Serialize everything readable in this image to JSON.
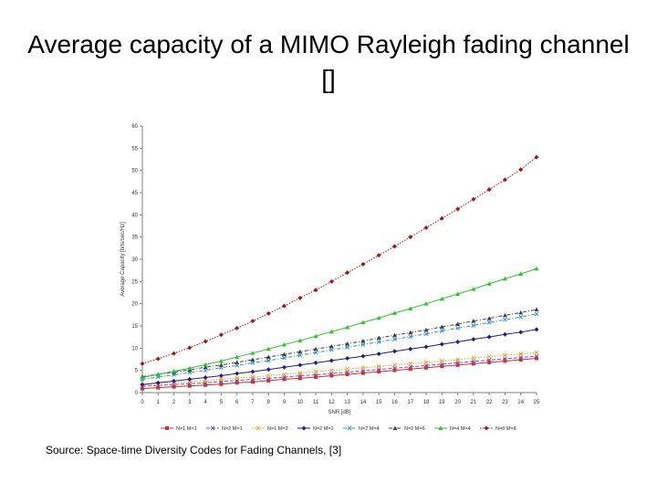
{
  "slide": {
    "title": "Average capacity of a MIMO Rayleigh fading channel []",
    "source": "Source: Space-time Diversity Codes for Fading Channels, [3]"
  },
  "chart_data": {
    "type": "line",
    "xlabel": "SNR [dB]",
    "ylabel": "Average Capacity [bits/sec/Hz]",
    "ylim": [
      0,
      60
    ],
    "yticks": [
      0,
      5,
      10,
      15,
      20,
      25,
      30,
      35,
      40,
      45,
      50,
      55,
      60
    ],
    "x": [
      "0",
      "1",
      "2",
      "3",
      "4",
      "5",
      "6",
      "7",
      "8",
      "9",
      "10",
      "11",
      "12",
      "13",
      "14",
      "15",
      "16",
      "17",
      "18",
      "19",
      "20",
      "21",
      "22",
      "23",
      "24",
      "25"
    ],
    "grid": false,
    "legend_position": "bottom",
    "series": [
      {
        "name": "N=1 M=1",
        "color": "#d03030",
        "marker": "square",
        "dash": "solid",
        "values": [
          0.9,
          1.1,
          1.3,
          1.5,
          1.7,
          1.9,
          2.2,
          2.4,
          2.7,
          3.0,
          3.2,
          3.5,
          3.8,
          4.1,
          4.4,
          4.7,
          5.0,
          5.3,
          5.6,
          5.9,
          6.2,
          6.5,
          6.8,
          7.1,
          7.4,
          7.7
        ]
      },
      {
        "name": "N=2 M=1",
        "color": "#8050b0",
        "marker": "x",
        "dash": "dash",
        "values": [
          1.4,
          1.6,
          1.8,
          2.0,
          2.2,
          2.5,
          2.7,
          3.0,
          3.2,
          3.5,
          3.8,
          4.0,
          4.3,
          4.6,
          4.9,
          5.2,
          5.5,
          5.8,
          6.1,
          6.4,
          6.7,
          7.0,
          7.3,
          7.6,
          7.9,
          8.2
        ]
      },
      {
        "name": "N=1 M=2",
        "color": "#f0a030",
        "marker": "x",
        "dash": "dot",
        "values": [
          1.7,
          2.0,
          2.2,
          2.5,
          2.7,
          3.0,
          3.3,
          3.5,
          3.8,
          4.1,
          4.4,
          4.7,
          5.0,
          5.3,
          5.6,
          5.9,
          6.2,
          6.5,
          6.8,
          7.1,
          7.4,
          7.8,
          8.1,
          8.4,
          8.7,
          9.0
        ]
      },
      {
        "name": "N=2 M=2",
        "color": "#202080",
        "marker": "diamond",
        "dash": "solid",
        "values": [
          1.8,
          2.2,
          2.6,
          3.0,
          3.4,
          3.8,
          4.3,
          4.7,
          5.2,
          5.7,
          6.2,
          6.7,
          7.2,
          7.7,
          8.2,
          8.7,
          9.3,
          9.8,
          10.3,
          10.9,
          11.4,
          12.0,
          12.5,
          13.1,
          13.6,
          14.2
        ]
      },
      {
        "name": "N=2 M=4",
        "color": "#3090d0",
        "marker": "x",
        "dash": "dashdot",
        "values": [
          3.0,
          3.5,
          4.0,
          4.5,
          5.0,
          5.6,
          6.1,
          6.7,
          7.2,
          7.8,
          8.4,
          9.0,
          9.6,
          10.2,
          10.8,
          11.4,
          12.0,
          12.6,
          13.2,
          13.9,
          14.5,
          15.1,
          15.8,
          16.4,
          17.0,
          17.7
        ]
      },
      {
        "name": "N=2 M=6",
        "color": "#404040",
        "marker": "triangle",
        "dash": "dashdot",
        "values": [
          3.6,
          4.1,
          4.6,
          5.1,
          5.7,
          6.2,
          6.8,
          7.4,
          8.0,
          8.6,
          9.2,
          9.8,
          10.4,
          11.0,
          11.6,
          12.3,
          12.9,
          13.5,
          14.1,
          14.8,
          15.4,
          16.1,
          16.7,
          17.4,
          18.0,
          18.7
        ]
      },
      {
        "name": "N=4 M=4",
        "color": "#30c030",
        "marker": "triangle",
        "dash": "solid",
        "values": [
          3.4,
          4.1,
          4.8,
          5.5,
          6.3,
          7.1,
          8.0,
          8.9,
          9.8,
          10.8,
          11.7,
          12.7,
          13.7,
          14.7,
          15.8,
          16.8,
          17.9,
          18.9,
          20.0,
          21.1,
          22.2,
          23.3,
          24.5,
          25.6,
          26.7,
          27.9
        ]
      },
      {
        "name": "N=8 M=8",
        "color": "#a01818",
        "marker": "diamond",
        "dash": "dot",
        "values": [
          6.5,
          7.6,
          8.8,
          10.1,
          11.5,
          13.0,
          14.5,
          16.1,
          17.8,
          19.5,
          21.3,
          23.1,
          25.0,
          27.0,
          28.9,
          30.9,
          32.9,
          35.0,
          37.1,
          39.2,
          41.3,
          43.5,
          45.7,
          47.9,
          50.2,
          53.0
        ]
      }
    ]
  }
}
